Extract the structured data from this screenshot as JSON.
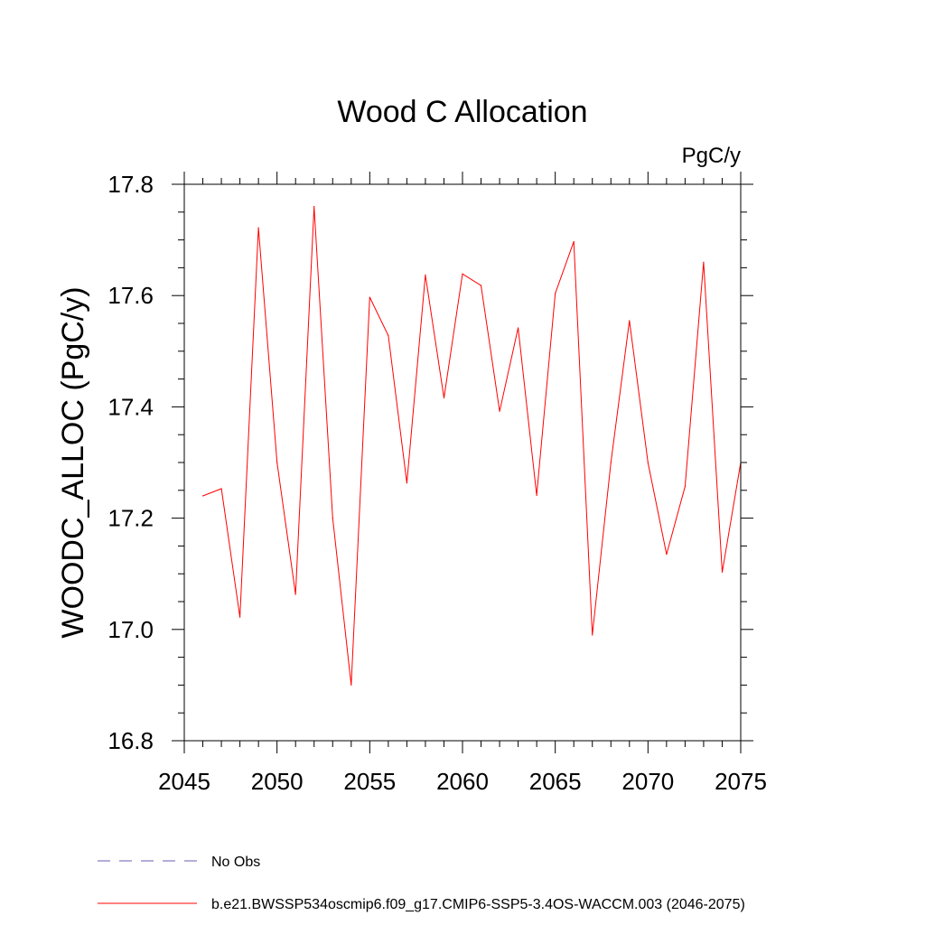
{
  "chart_data": {
    "type": "line",
    "title": "Wood C Allocation",
    "units_label": "PgC/y",
    "xlabel": "",
    "ylabel": "WOODC_ALLOC  (PgC/y)",
    "xlim": [
      2045,
      2075
    ],
    "ylim": [
      16.8,
      17.8
    ],
    "x_ticks": [
      "2045",
      "2050",
      "2055",
      "2060",
      "2065",
      "2070",
      "2075"
    ],
    "y_ticks": [
      "16.8",
      "17.0",
      "17.2",
      "17.4",
      "17.6",
      "17.8"
    ],
    "series": [
      {
        "name": "b.e21.BWSSP534oscmip6.f09_g17.CMIP6-SSP5-3.4OS-WACCM.003 (2046-2075)",
        "color": "#ff0000",
        "x": [
          2046,
          2047,
          2048,
          2049,
          2050,
          2051,
          2052,
          2053,
          2054,
          2055,
          2056,
          2057,
          2058,
          2059,
          2060,
          2061,
          2062,
          2063,
          2064,
          2065,
          2066,
          2067,
          2068,
          2069,
          2070,
          2071,
          2072,
          2073,
          2074,
          2075
        ],
        "values": [
          17.24,
          17.253,
          17.022,
          17.722,
          17.3,
          17.063,
          17.76,
          17.2,
          16.9,
          17.597,
          17.528,
          17.263,
          17.637,
          17.416,
          17.639,
          17.618,
          17.392,
          17.542,
          17.241,
          17.604,
          17.697,
          16.99,
          17.3,
          17.555,
          17.3,
          17.135,
          17.257,
          17.66,
          17.103,
          17.3
        ]
      }
    ],
    "legend": [
      {
        "label": "No Obs",
        "color": "#6b5bb0",
        "style": "dashed"
      },
      {
        "label": "b.e21.BWSSP534oscmip6.f09_g17.CMIP6-SSP5-3.4OS-WACCM.003 (2046-2075)",
        "color": "#ff0000",
        "style": "solid"
      }
    ],
    "legend_position": "bottom-left"
  }
}
